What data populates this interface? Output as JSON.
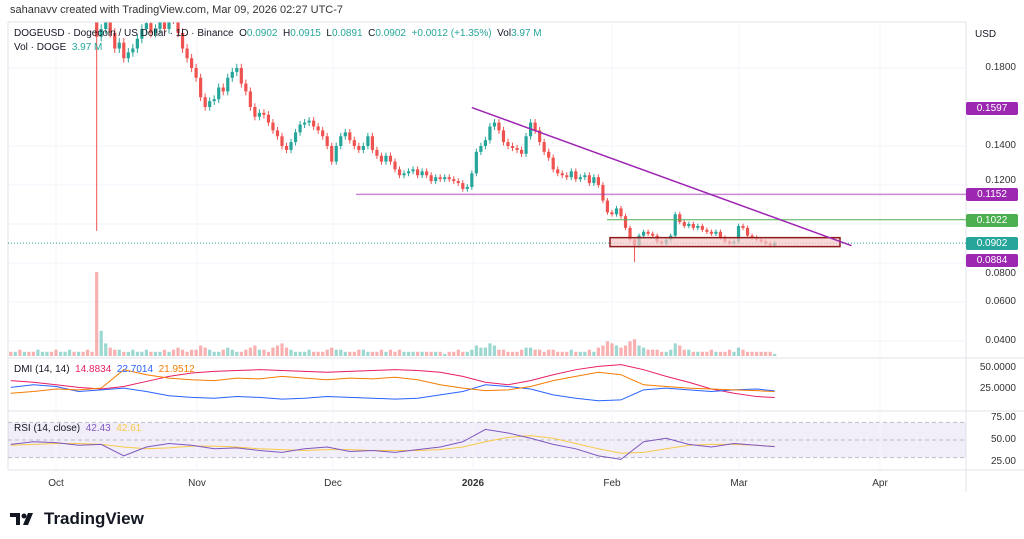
{
  "credit": "sahanavv created with TradingView.com, Mar 09, 2026 02:27 UTC-7",
  "legend": {
    "symbol": "DOGEUSD · Dogecoin / US Dollar · 1D · Binance",
    "o_label": "O",
    "o": "0.0902",
    "h_label": "H",
    "h": "0.0915",
    "l_label": "L",
    "l": "0.0891",
    "c_label": "C",
    "c": "0.0902",
    "change": "+0.0012 (+1.35%)",
    "vol_label": "Vol",
    "vol": "3.97 M",
    "vol_series": "Vol · DOGE",
    "vol_value": "3.97 M"
  },
  "axis": {
    "currency": "USD",
    "price_ticks": [
      "0.1800",
      "0.1400",
      "0.1200",
      "0.1000",
      "0.0800",
      "0.0600",
      "0.0400"
    ],
    "dmi_ticks": [
      "50.0000",
      "25.0000"
    ],
    "rsi_ticks": [
      "75.00",
      "50.00",
      "25.00"
    ],
    "time_labels": [
      "Oct",
      "Nov",
      "Dec",
      "2026",
      "Feb",
      "Mar",
      "Apr"
    ]
  },
  "price_tags": [
    {
      "value": "0.1597",
      "color": "#9c27b0"
    },
    {
      "value": "0.1152",
      "color": "#9c27b0"
    },
    {
      "value": "0.1022",
      "color": "#4caf50"
    },
    {
      "value": "0.0902",
      "color": "#26a69a"
    },
    {
      "value": "0.0884",
      "color": "#9c27b0"
    }
  ],
  "indicators": {
    "dmi": {
      "label": "DMI (14, 14)",
      "adx": "14.8834",
      "plus_di": "22.7014",
      "minus_di": "21.9512"
    },
    "rsi": {
      "label": "RSI (14, close)",
      "rsi": "42.43",
      "ma": "42.61"
    }
  },
  "brand": "TradingView",
  "colors": {
    "up": "#26a69a",
    "down": "#ef5350",
    "trendline": "#9c27b0",
    "support_box": "#8b1a1a",
    "resistance_green": "#4caf50",
    "adx": "#e91e63",
    "plus_di": "#2962ff",
    "minus_di": "#f57c00",
    "rsi": "#7e57c2",
    "rsi_ma": "#f7c948"
  },
  "chart_data": {
    "type": "candlestick",
    "symbol": "DOGEUSD",
    "interval": "1D",
    "start_date": "2025-09-21",
    "end_date": "2026-03-09",
    "ylim": [
      0.03,
      0.2046
    ],
    "close": [
      0.235,
      0.24,
      0.238,
      0.245,
      0.24,
      0.235,
      0.24,
      0.245,
      0.25,
      0.248,
      0.245,
      0.25,
      0.255,
      0.26,
      0.258,
      0.26,
      0.255,
      0.25,
      0.245,
      0.196,
      0.2,
      0.205,
      0.198,
      0.19,
      0.193,
      0.185,
      0.188,
      0.19,
      0.195,
      0.2,
      0.203,
      0.198,
      0.2,
      0.205,
      0.2,
      0.21,
      0.205,
      0.198,
      0.19,
      0.185,
      0.18,
      0.175,
      0.165,
      0.16,
      0.163,
      0.164,
      0.17,
      0.168,
      0.175,
      0.178,
      0.18,
      0.172,
      0.168,
      0.16,
      0.155,
      0.157,
      0.156,
      0.152,
      0.148,
      0.145,
      0.14,
      0.138,
      0.142,
      0.147,
      0.151,
      0.152,
      0.153,
      0.15,
      0.148,
      0.145,
      0.14,
      0.132,
      0.14,
      0.145,
      0.147,
      0.143,
      0.14,
      0.138,
      0.14,
      0.145,
      0.138,
      0.135,
      0.132,
      0.135,
      0.132,
      0.128,
      0.125,
      0.126,
      0.127,
      0.128,
      0.125,
      0.127,
      0.125,
      0.122,
      0.124,
      0.123,
      0.124,
      0.123,
      0.122,
      0.121,
      0.118,
      0.119,
      0.126,
      0.137,
      0.14,
      0.143,
      0.15,
      0.152,
      0.148,
      0.142,
      0.14,
      0.139,
      0.138,
      0.136,
      0.145,
      0.152,
      0.148,
      0.142,
      0.137,
      0.134,
      0.128,
      0.126,
      0.125,
      0.124,
      0.127,
      0.123,
      0.124,
      0.125,
      0.121,
      0.124,
      0.12,
      0.112,
      0.106,
      0.105,
      0.108,
      0.104,
      0.098,
      0.092,
      0.089,
      0.094,
      0.096,
      0.095,
      0.094,
      0.091,
      0.09,
      0.092,
      0.094,
      0.105,
      0.101,
      0.099,
      0.1,
      0.098,
      0.099,
      0.097,
      0.096,
      0.095,
      0.096,
      0.093,
      0.091,
      0.09,
      0.091,
      0.099,
      0.098,
      0.094,
      0.093,
      0.092,
      0.091,
      0.09,
      0.089,
      0.0902
    ],
    "notable_wicks": [
      {
        "date": "2025-10-10",
        "low": 0.0965
      },
      {
        "date": "2026-02-06",
        "low": 0.0805
      }
    ],
    "volume": [
      2,
      2,
      3,
      2,
      2,
      2,
      3,
      2,
      2,
      2,
      3,
      2,
      2,
      3,
      2,
      2,
      2,
      3,
      2,
      40,
      12,
      6,
      4,
      3,
      3,
      2,
      2,
      3,
      2,
      2,
      3,
      2,
      2,
      2,
      3,
      2,
      3,
      4,
      3,
      2,
      3,
      3,
      5,
      4,
      3,
      2,
      2,
      3,
      4,
      3,
      2,
      2,
      3,
      4,
      5,
      3,
      3,
      2,
      4,
      5,
      6,
      4,
      3,
      2,
      2,
      2,
      3,
      2,
      2,
      2,
      3,
      4,
      3,
      3,
      2,
      2,
      2,
      3,
      3,
      2,
      2,
      2,
      3,
      2,
      3,
      2,
      3,
      2,
      2,
      2,
      2,
      2,
      2,
      2,
      2,
      2,
      1,
      2,
      2,
      3,
      2,
      2,
      3,
      5,
      4,
      4,
      6,
      5,
      3,
      3,
      2,
      2,
      2,
      3,
      4,
      4,
      3,
      3,
      2,
      3,
      3,
      2,
      2,
      2,
      3,
      2,
      2,
      2,
      3,
      2,
      4,
      5,
      7,
      6,
      5,
      4,
      5,
      7,
      8,
      5,
      4,
      3,
      3,
      3,
      2,
      2,
      3,
      6,
      5,
      3,
      3,
      2,
      2,
      2,
      2,
      3,
      2,
      2,
      2,
      3,
      2,
      4,
      3,
      2,
      2,
      2,
      2,
      2,
      2,
      1
    ],
    "lines": {
      "descending_trendline": {
        "from": {
          "date": "2026-01-01",
          "price": 0.1597
        },
        "to": {
          "date": "2026-03-26",
          "price": 0.0889
        }
      },
      "horizontal_resistance": 0.1152,
      "green_level": 0.1022,
      "support_zone": [
        0.0884,
        0.093
      ]
    },
    "indicator_step_days": 5,
    "dmi": {
      "ylim": [
        0,
        60
      ],
      "adx": [
        35,
        33,
        30,
        27,
        25,
        28,
        34,
        40,
        44,
        46,
        47,
        48,
        47,
        46,
        45,
        46,
        47,
        48,
        47,
        45,
        40,
        33,
        30,
        35,
        42,
        48,
        52,
        54,
        48,
        40,
        33,
        25,
        20,
        16,
        14.88
      ],
      "plus_di": [
        27,
        30,
        28,
        22,
        24,
        26,
        22,
        17,
        15,
        14,
        16,
        15,
        13,
        14,
        16,
        15,
        14,
        13,
        14,
        18,
        22,
        30,
        28,
        25,
        18,
        14,
        11,
        12,
        24,
        26,
        24,
        22,
        24,
        25,
        22.7
      ],
      "minus_di": [
        20,
        22,
        25,
        24,
        26,
        48,
        42,
        38,
        36,
        35,
        38,
        37,
        40,
        38,
        36,
        38,
        37,
        39,
        36,
        30,
        26,
        23,
        24,
        28,
        35,
        40,
        45,
        42,
        30,
        28,
        26,
        25,
        24,
        23,
        21.95
      ]
    },
    "rsi": {
      "ylim": [
        15,
        90
      ],
      "bands": [
        70,
        30
      ],
      "rsi": [
        45,
        48,
        47,
        44,
        45,
        32,
        42,
        46,
        44,
        40,
        41,
        38,
        36,
        40,
        42,
        37,
        38,
        36,
        39,
        42,
        48,
        62,
        58,
        52,
        45,
        40,
        32,
        28,
        48,
        52,
        45,
        42,
        46,
        44,
        42.43
      ],
      "ma": [
        44,
        45,
        46,
        46,
        45,
        42,
        40,
        41,
        43,
        43,
        42,
        40,
        39,
        38,
        39,
        39,
        38,
        38,
        38,
        39,
        42,
        48,
        53,
        55,
        52,
        46,
        40,
        35,
        36,
        40,
        44,
        45,
        45,
        44,
        42.61
      ]
    }
  }
}
